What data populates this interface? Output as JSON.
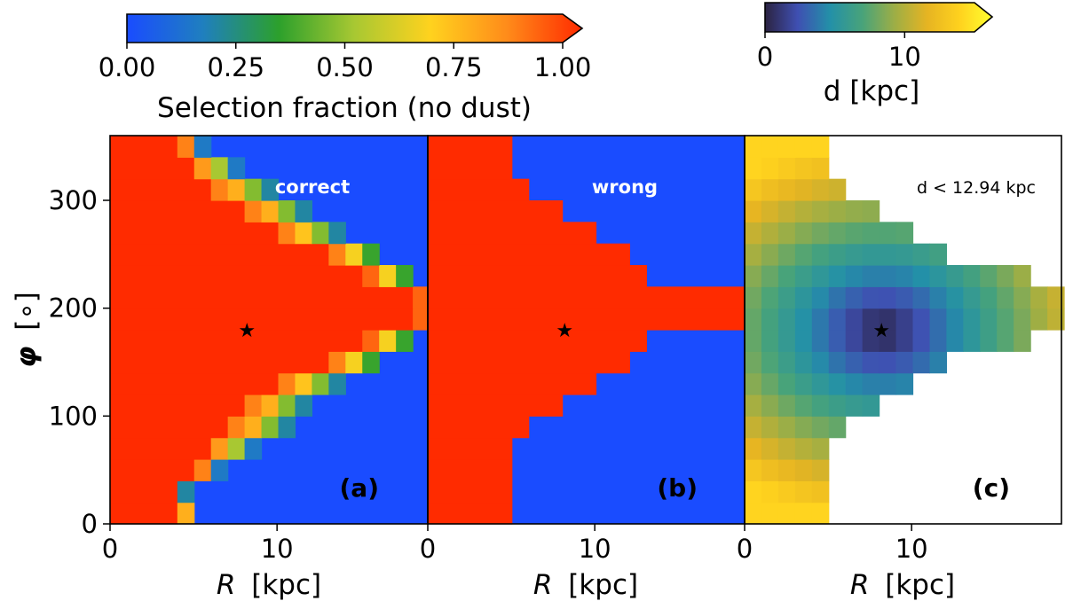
{
  "colorbars": {
    "selection": {
      "label": "Selection fraction (no dust)",
      "ticks": [
        "0.00",
        "0.25",
        "0.50",
        "0.75",
        "1.00"
      ],
      "tick_values": [
        0,
        0.25,
        0.5,
        0.75,
        1.0
      ],
      "range": [
        0,
        1
      ],
      "stops": [
        "#1a4cff",
        "#1f7fbf",
        "#2ca02c",
        "#a8c832",
        "#ffd21e",
        "#ff8c1a",
        "#ff2b00"
      ]
    },
    "distance": {
      "label": "d [kpc]",
      "ticks": [
        "0",
        "10"
      ],
      "tick_values": [
        0,
        10
      ],
      "range": [
        0,
        15
      ],
      "stops": [
        "#2b2341",
        "#3f4fb2",
        "#2390a8",
        "#48a37a",
        "#9eae45",
        "#e6b422",
        "#ffd21e",
        "#ffff30"
      ]
    }
  },
  "axes": {
    "ylabel_symbol": "φ",
    "ylabel_unit": "[∘]",
    "xlabel_symbol": "R",
    "xlabel_unit": "[kpc]"
  },
  "chart_data": [
    {
      "type": "heatmap",
      "panel_label": "(a)",
      "annotation": "correct",
      "xlabel": "R [kpc]",
      "ylabel": "φ [∘]",
      "xlim": [
        0,
        19
      ],
      "ylim": [
        0,
        360
      ],
      "x_ticks": [
        0,
        10
      ],
      "y_ticks": [
        0,
        100,
        200,
        300
      ],
      "cell_size": [
        1,
        20
      ],
      "fully_selected_edge_R": [
        4,
        4,
        5,
        6,
        7,
        8,
        10,
        13,
        15,
        18,
        18,
        15,
        13,
        10,
        8,
        6,
        5,
        4
      ],
      "transition_fraction_cells": [
        [
          0.75
        ],
        [
          0.2
        ],
        [
          0.85,
          0.15
        ],
        [
          0.8,
          0.5,
          0.15
        ],
        [
          0.85,
          0.75,
          0.45,
          0.2
        ],
        [
          0.85,
          0.75,
          0.45,
          0.2
        ],
        [
          0.85,
          0.7,
          0.45,
          0.2
        ],
        [
          0.85,
          0.65,
          0.35
        ],
        [
          0.9,
          0.65,
          0.35
        ],
        [
          0.9
        ],
        [
          0.9
        ],
        [
          0.9,
          0.65,
          0.35
        ],
        [
          0.85,
          0.65,
          0.35
        ],
        [
          0.85,
          0.7,
          0.45,
          0.2
        ],
        [
          0.85,
          0.75,
          0.45,
          0.2
        ],
        [
          0.85,
          0.75,
          0.45,
          0.2
        ],
        [
          0.8,
          0.5,
          0.15
        ],
        [
          0.85,
          0.15
        ]
      ],
      "sun_position": {
        "R": 8.2,
        "phi": 180
      }
    },
    {
      "type": "heatmap",
      "panel_label": "(b)",
      "annotation": "wrong",
      "xlabel": "R [kpc]",
      "xlim": [
        0,
        19
      ],
      "ylim": [
        0,
        360
      ],
      "x_ticks": [
        0,
        10
      ],
      "cell_size": [
        1,
        20
      ],
      "selected_edge_R": [
        5,
        5,
        5,
        5,
        6,
        8,
        10,
        12,
        13,
        19,
        19,
        13,
        12,
        10,
        8,
        6,
        5,
        5
      ],
      "sun_position": {
        "R": 8.2,
        "phi": 180
      }
    },
    {
      "type": "heatmap",
      "panel_label": "(c)",
      "annotation": "d < 12.94 kpc",
      "xlabel": "R [kpc]",
      "xlim": [
        0,
        19
      ],
      "ylim": [
        0,
        360
      ],
      "x_ticks": [
        0,
        10
      ],
      "cell_size": [
        1,
        20
      ],
      "distance_cutoff_kpc": 12.94,
      "coverage_edge_R": [
        5,
        5,
        5,
        5,
        6,
        8,
        10,
        12,
        17,
        19,
        19,
        17,
        12,
        10,
        8,
        6,
        5,
        5
      ],
      "sun_position": {
        "R": 8.2,
        "phi": 180
      },
      "color_value": "distance from sun [kpc]"
    }
  ]
}
